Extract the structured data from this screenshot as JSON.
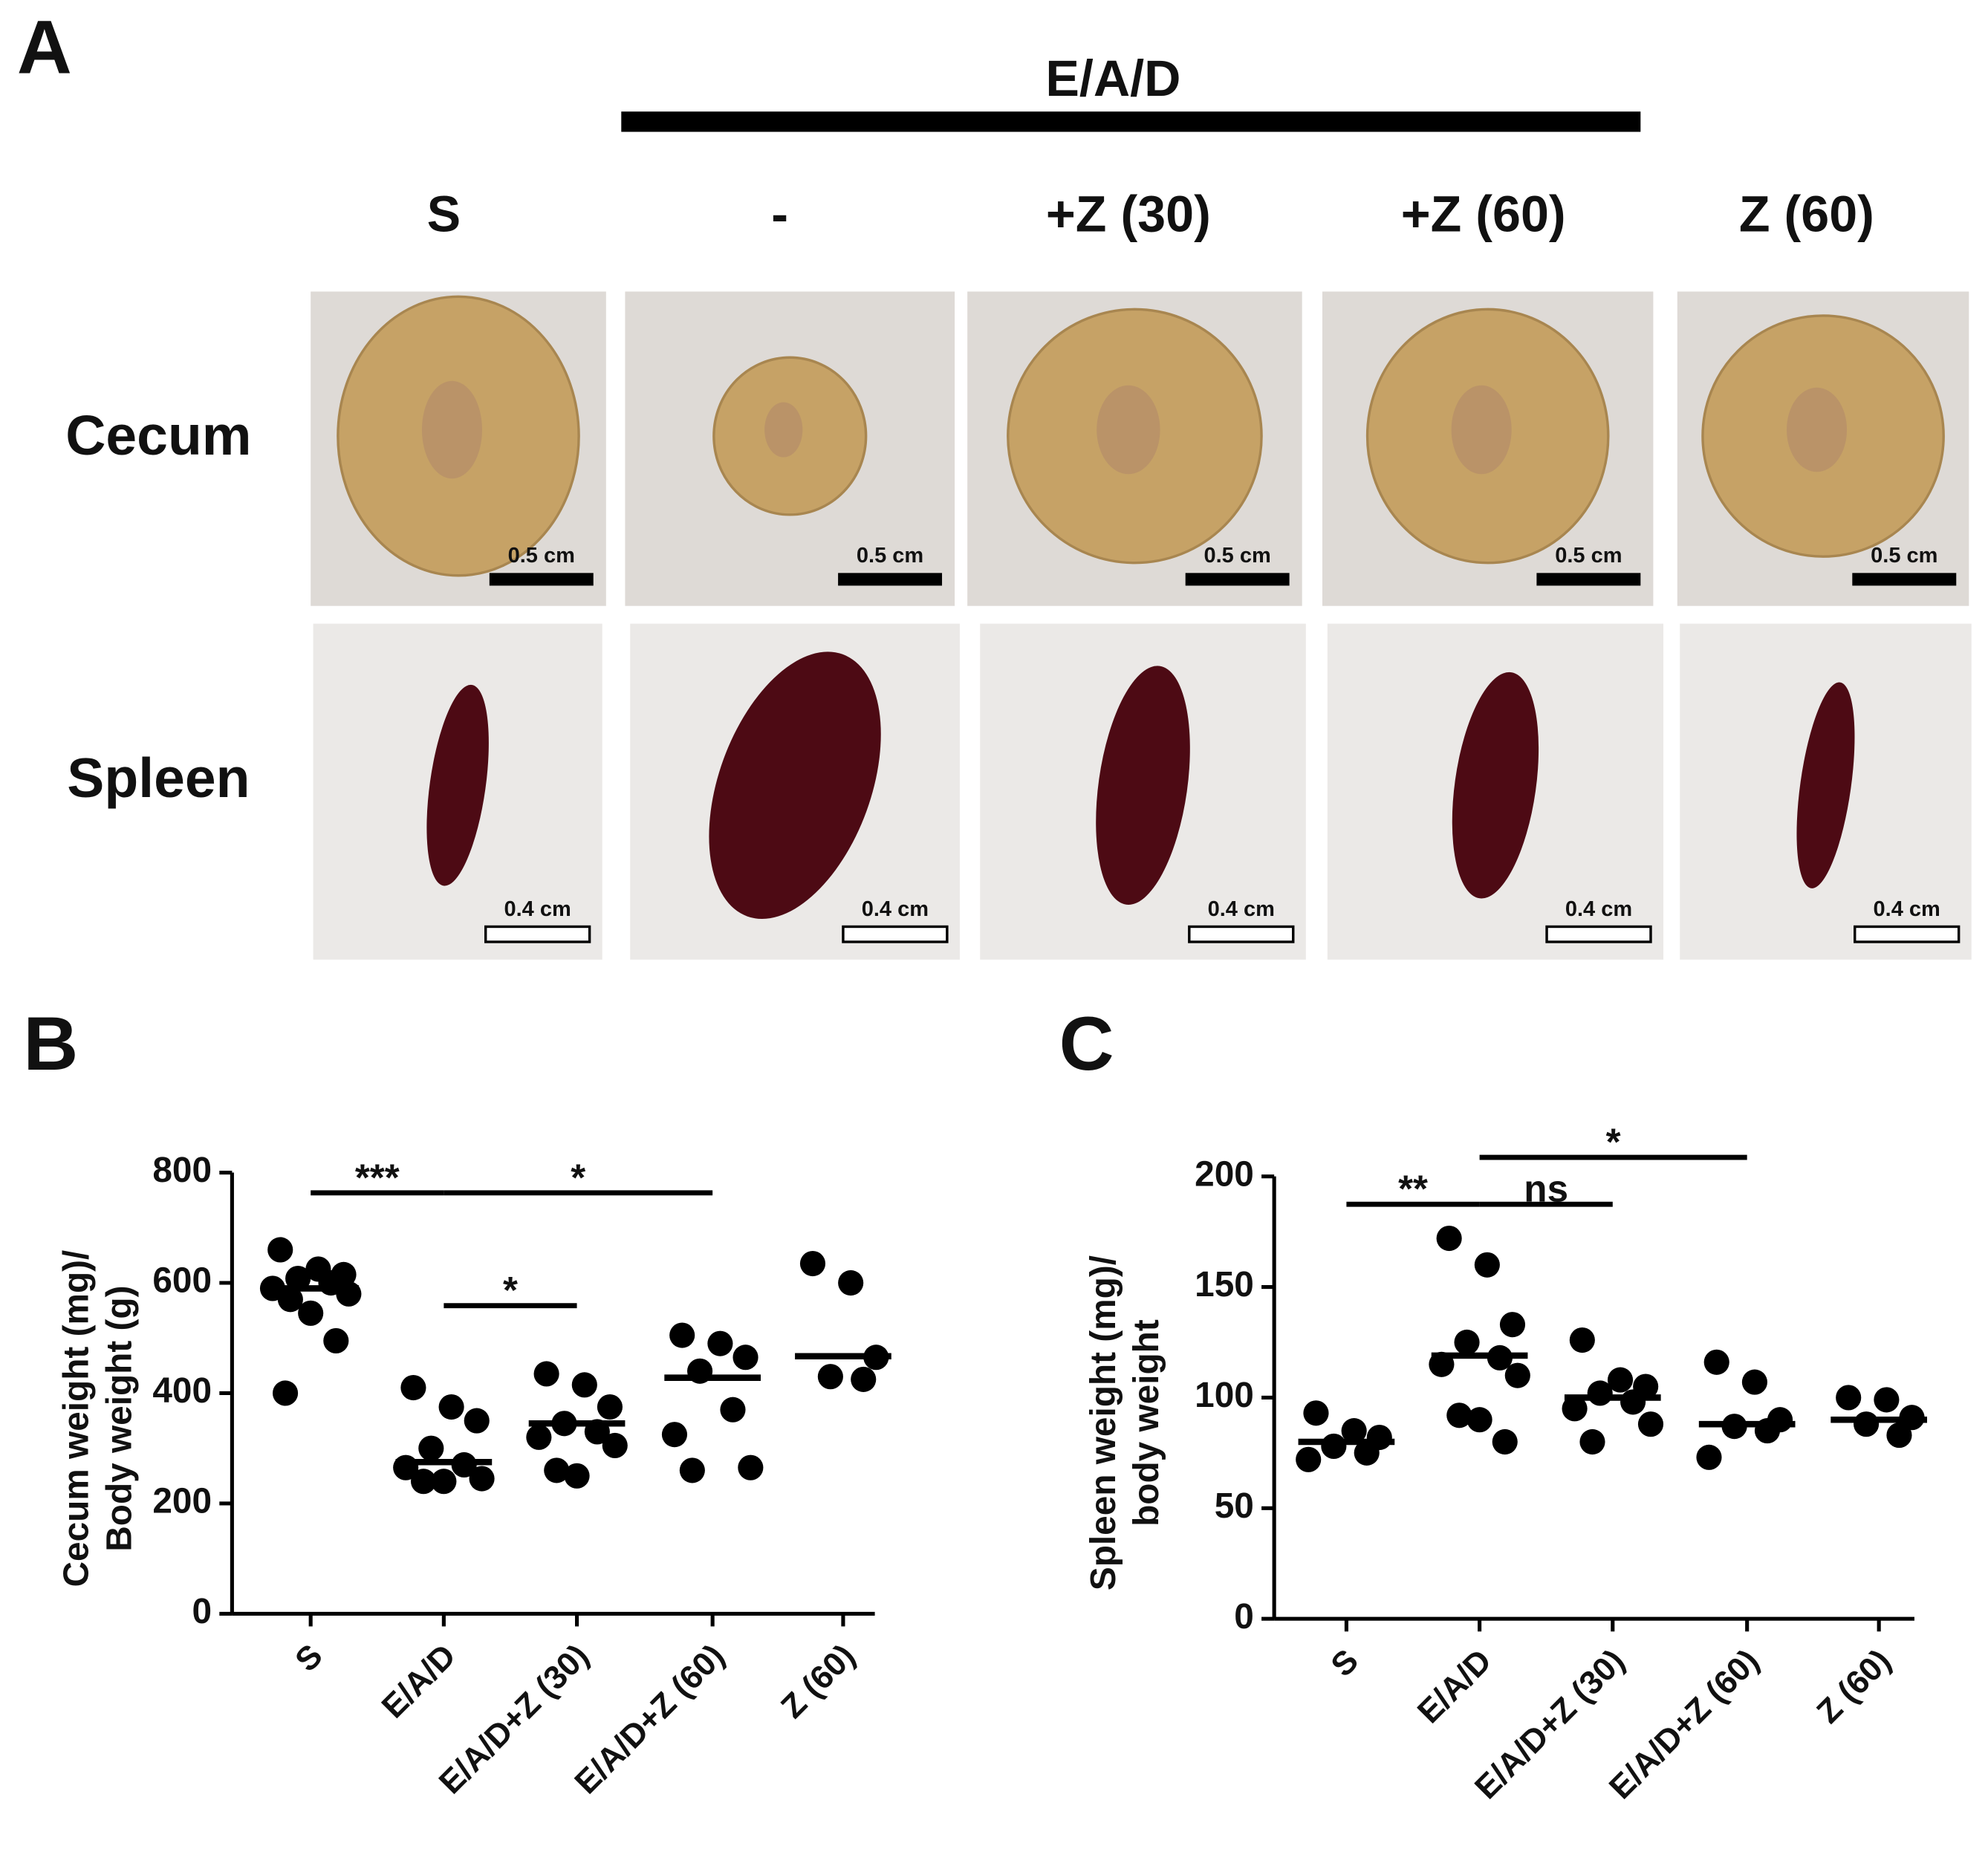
{
  "panel_a": {
    "label": "A",
    "group_label": "E/A/D",
    "columns": [
      "S",
      "-",
      "+Z (30)",
      "+Z (60)",
      "Z (60)"
    ],
    "rows": [
      "Cecum",
      "Spleen"
    ],
    "scale_bars": [
      [
        "0.5 cm",
        "0.5 cm",
        "0.5 cm",
        "0.5 cm",
        "0.5 cm"
      ],
      [
        "0.4 cm",
        "0.4 cm",
        "0.4 cm",
        "0.4 cm",
        "0.4 cm"
      ]
    ]
  },
  "chart_data": [
    {
      "type": "scatter",
      "panel_label": "B",
      "y_label": [
        "Cecum weight (mg)/",
        "Body weight (g)"
      ],
      "categories": [
        "S",
        "E/A/D",
        "E/A/D+Z (30)",
        "E/A/D+Z (60)",
        "Z (60)"
      ],
      "values": [
        [
          660,
          625,
          615,
          608,
          600,
          590,
          580,
          570,
          545,
          495,
          400
        ],
        [
          410,
          375,
          350,
          300,
          270,
          265,
          245,
          240,
          240
        ],
        [
          435,
          415,
          375,
          345,
          330,
          320,
          305,
          260,
          250
        ],
        [
          505,
          490,
          465,
          440,
          370,
          325,
          265,
          260
        ],
        [
          635,
          600,
          465,
          430,
          425
        ]
      ],
      "means": [
        590,
        275,
        345,
        428,
        467
      ],
      "color": "#000000",
      "ylim": [
        0,
        800
      ],
      "yticks": [
        0,
        200,
        400,
        600,
        800
      ],
      "comparisons": [
        {
          "between": [
            0,
            1
          ],
          "label": "***"
        },
        {
          "between": [
            1,
            3
          ],
          "label": "*"
        },
        {
          "between": [
            1,
            2
          ],
          "label": "*"
        }
      ]
    },
    {
      "type": "scatter",
      "panel_label": "C",
      "y_label": [
        "Spleen weight (mg)/",
        "body weight"
      ],
      "categories": [
        "S",
        "E/A/D",
        "E/A/D+Z (30)",
        "E/A/D+Z (60)",
        "Z (60)"
      ],
      "values": [
        [
          93,
          85,
          82,
          78,
          75,
          72
        ],
        [
          172,
          160,
          133,
          125,
          118,
          115,
          110,
          92,
          90,
          80
        ],
        [
          126,
          108,
          105,
          102,
          98,
          95,
          88,
          80
        ],
        [
          116,
          107,
          90,
          87,
          85,
          73
        ],
        [
          100,
          99,
          91,
          88,
          83
        ]
      ],
      "means": [
        80,
        119,
        100,
        88,
        90
      ],
      "color": "#000000",
      "ylim": [
        0,
        200
      ],
      "yticks": [
        0,
        50,
        100,
        150,
        200
      ],
      "comparisons": [
        {
          "between": [
            0,
            1
          ],
          "label": "**"
        },
        {
          "between": [
            1,
            2
          ],
          "label": "ns"
        },
        {
          "between": [
            1,
            3
          ],
          "label": "*"
        }
      ]
    }
  ]
}
